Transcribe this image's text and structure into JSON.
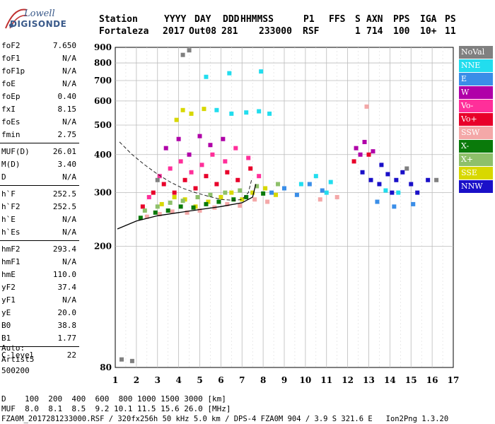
{
  "brand": {
    "top": "Lowell",
    "bottom": "DIGISONDE"
  },
  "header": {
    "labels": [
      "Station",
      "YYYY",
      "DAY",
      "DDD",
      "HHMMSS",
      "P1",
      "FFS",
      "S",
      "AXN",
      "PPS",
      "IGA",
      "PS"
    ],
    "values": [
      "Fortaleza",
      "2017",
      "Out08",
      "281",
      "233000",
      "RSF",
      "",
      "1",
      "714",
      "100",
      "10+",
      "11"
    ]
  },
  "params": [
    {
      "k": "foF2",
      "v": "7.650"
    },
    {
      "k": "foF1",
      "v": "N/A"
    },
    {
      "k": "foF1p",
      "v": "N/A"
    },
    {
      "k": "foE",
      "v": "N/A"
    },
    {
      "k": "foEp",
      "v": "0.40"
    },
    {
      "k": "fxI",
      "v": "8.15"
    },
    {
      "k": "foEs",
      "v": "N/A"
    },
    {
      "k": "fmin",
      "v": "2.75"
    },
    {
      "k": "MUF(D)",
      "v": "26.01"
    },
    {
      "k": "M(D)",
      "v": "3.40"
    },
    {
      "k": "D",
      "v": "N/A"
    },
    {
      "k": "h`F",
      "v": "252.5"
    },
    {
      "k": "h`F2",
      "v": "252.5"
    },
    {
      "k": "h`E",
      "v": "N/A"
    },
    {
      "k": "h`Es",
      "v": "N/A"
    },
    {
      "k": "hmF2",
      "v": "293.4"
    },
    {
      "k": "hmF1",
      "v": "N/A"
    },
    {
      "k": "hmE",
      "v": "110.0"
    },
    {
      "k": "yF2",
      "v": "37.4"
    },
    {
      "k": "yF1",
      "v": "N/A"
    },
    {
      "k": "yE",
      "v": "20.0"
    },
    {
      "k": "B0",
      "v": "38.8"
    },
    {
      "k": "B1",
      "v": "1.77"
    },
    {
      "k": "C-level",
      "v": "22"
    }
  ],
  "autoscale": {
    "line1": "Auto:",
    "line2": "Artist5",
    "line3": "500200"
  },
  "legend": [
    {
      "label": "NoVal",
      "color": "#808080"
    },
    {
      "label": "NNE",
      "color": "#22ddee"
    },
    {
      "label": "E",
      "color": "#3a8ee8"
    },
    {
      "label": "W",
      "color": "#b000a8"
    },
    {
      "label": "Vo-",
      "color": "#ff2f9a"
    },
    {
      "label": "Vo+",
      "color": "#e8002a"
    },
    {
      "label": "SSW",
      "color": "#f4a8a8"
    },
    {
      "label": "X-",
      "color": "#0a7a0a"
    },
    {
      "label": "X+",
      "color": "#8ec06a"
    },
    {
      "label": "SSE",
      "color": "#d8d800"
    },
    {
      "label": "NNW",
      "color": "#1a10c8"
    }
  ],
  "chart_data": {
    "type": "scatter",
    "title": "",
    "xlabel": "",
    "ylabel": "",
    "xlim": [
      1,
      17
    ],
    "ylim": [
      80,
      900
    ],
    "x_ticks": [
      "1",
      "2",
      "3",
      "4",
      "5",
      "6",
      "7",
      "8",
      "9",
      "10",
      "11",
      "12",
      "13",
      "14",
      "15",
      "16",
      "17"
    ],
    "y_ticks": [
      "80",
      "200",
      "300",
      "400",
      "500",
      "600",
      "700",
      "800",
      "900"
    ],
    "y_scale": "log",
    "grid": true,
    "dashed_profile": [
      [
        1.2,
        440
      ],
      [
        1.8,
        400
      ],
      [
        2.4,
        370
      ],
      [
        3.0,
        345
      ],
      [
        3.6,
        325
      ],
      [
        4.2,
        310
      ],
      [
        4.8,
        300
      ],
      [
        5.4,
        292
      ],
      [
        6.0,
        285
      ],
      [
        6.6,
        283
      ],
      [
        7.0,
        285
      ],
      [
        7.3,
        300
      ],
      [
        7.45,
        330
      ]
    ],
    "trace_line": [
      [
        1.1,
        228
      ],
      [
        2.0,
        242
      ],
      [
        3.0,
        252
      ],
      [
        4.0,
        258
      ],
      [
        5.0,
        264
      ],
      [
        6.0,
        270
      ],
      [
        7.0,
        278
      ],
      [
        7.5,
        290
      ],
      [
        7.65,
        320
      ]
    ],
    "clusters": [
      {
        "name": "SSE",
        "points": [
          [
            3.2,
            275
          ],
          [
            3.8,
            290
          ],
          [
            4.3,
            285
          ],
          [
            4.8,
            270
          ],
          [
            5.4,
            280
          ],
          [
            6.0,
            290
          ],
          [
            6.5,
            300
          ],
          [
            7.0,
            285
          ],
          [
            7.5,
            300
          ],
          [
            8.1,
            310
          ],
          [
            8.6,
            295
          ],
          [
            4.2,
            560
          ],
          [
            4.6,
            545
          ],
          [
            5.2,
            565
          ],
          [
            3.9,
            520
          ]
        ]
      },
      {
        "name": "Vo+",
        "points": [
          [
            2.3,
            270
          ],
          [
            2.8,
            300
          ],
          [
            3.3,
            320
          ],
          [
            3.8,
            300
          ],
          [
            4.3,
            330
          ],
          [
            4.8,
            310
          ],
          [
            5.3,
            340
          ],
          [
            5.8,
            320
          ],
          [
            6.3,
            350
          ],
          [
            6.8,
            330
          ],
          [
            7.4,
            360
          ],
          [
            12.3,
            380
          ],
          [
            13.0,
            400
          ]
        ]
      },
      {
        "name": "Vo-",
        "points": [
          [
            2.6,
            290
          ],
          [
            3.1,
            340
          ],
          [
            3.6,
            360
          ],
          [
            4.1,
            380
          ],
          [
            4.6,
            350
          ],
          [
            5.1,
            370
          ],
          [
            5.6,
            400
          ],
          [
            6.2,
            380
          ],
          [
            6.7,
            420
          ],
          [
            7.3,
            390
          ],
          [
            7.8,
            340
          ]
        ]
      },
      {
        "name": "W",
        "points": [
          [
            3.4,
            420
          ],
          [
            4.0,
            450
          ],
          [
            4.5,
            400
          ],
          [
            5.0,
            460
          ],
          [
            5.5,
            430
          ],
          [
            6.1,
            450
          ],
          [
            12.4,
            420
          ],
          [
            12.8,
            440
          ],
          [
            13.2,
            410
          ],
          [
            12.6,
            400
          ]
        ]
      },
      {
        "name": "NNW",
        "points": [
          [
            12.7,
            350
          ],
          [
            13.1,
            330
          ],
          [
            13.5,
            320
          ],
          [
            13.9,
            345
          ],
          [
            14.3,
            330
          ],
          [
            14.6,
            350
          ],
          [
            15.0,
            320
          ],
          [
            15.3,
            300
          ],
          [
            15.8,
            330
          ],
          [
            13.6,
            370
          ],
          [
            14.1,
            300
          ]
        ]
      },
      {
        "name": "NNE",
        "points": [
          [
            5.8,
            560
          ],
          [
            6.5,
            545
          ],
          [
            7.2,
            550
          ],
          [
            7.8,
            555
          ],
          [
            8.3,
            545
          ],
          [
            9.8,
            320
          ],
          [
            10.5,
            340
          ],
          [
            11.2,
            325
          ],
          [
            13.8,
            305
          ],
          [
            14.4,
            300
          ],
          [
            11.0,
            300
          ],
          [
            5.3,
            720
          ],
          [
            6.4,
            740
          ],
          [
            7.9,
            750
          ]
        ]
      },
      {
        "name": "E",
        "points": [
          [
            8.4,
            300
          ],
          [
            9.0,
            310
          ],
          [
            9.6,
            295
          ],
          [
            10.2,
            320
          ],
          [
            10.8,
            305
          ],
          [
            13.4,
            280
          ],
          [
            14.2,
            270
          ],
          [
            15.1,
            275
          ]
        ]
      },
      {
        "name": "SSW",
        "points": [
          [
            2.5,
            250
          ],
          [
            3.1,
            255
          ],
          [
            3.7,
            260
          ],
          [
            4.4,
            258
          ],
          [
            5.0,
            262
          ],
          [
            5.7,
            268
          ],
          [
            6.3,
            275
          ],
          [
            6.9,
            272
          ],
          [
            7.6,
            285
          ],
          [
            8.2,
            280
          ],
          [
            10.7,
            285
          ],
          [
            11.5,
            290
          ],
          [
            12.9,
            575
          ]
        ]
      },
      {
        "name": "X-",
        "points": [
          [
            2.2,
            248
          ],
          [
            2.9,
            258
          ],
          [
            3.5,
            262
          ],
          [
            4.1,
            270
          ],
          [
            4.7,
            268
          ],
          [
            5.3,
            275
          ],
          [
            5.9,
            280
          ],
          [
            6.6,
            285
          ],
          [
            7.2,
            290
          ],
          [
            8.0,
            298
          ]
        ]
      },
      {
        "name": "X+",
        "points": [
          [
            2.4,
            262
          ],
          [
            3.0,
            270
          ],
          [
            3.6,
            278
          ],
          [
            4.2,
            282
          ],
          [
            4.9,
            290
          ],
          [
            5.5,
            295
          ],
          [
            6.2,
            300
          ],
          [
            6.9,
            305
          ],
          [
            7.7,
            315
          ],
          [
            8.7,
            320
          ]
        ]
      },
      {
        "name": "NoVal",
        "points": [
          [
            4.5,
            880
          ],
          [
            4.2,
            850
          ],
          [
            1.3,
            85
          ],
          [
            1.8,
            84
          ],
          [
            3.0,
            330
          ],
          [
            14.8,
            360
          ],
          [
            16.2,
            330
          ]
        ]
      }
    ]
  },
  "bottom": {
    "d_row": "D    100  200  400  600  800 1000 1500 3000 [km]",
    "muf_row": "MUF  8.0  8.1  8.5  9.2 10.1 11.5 15.6 26.0 [MHz]",
    "footer": "FZA0M_2017281233000.RSF / 320fx256h 50 kHz 5.0 km / DPS-4 FZA0M 904 / 3.9 S 321.6 E   Ion2Png 1.3.20"
  }
}
